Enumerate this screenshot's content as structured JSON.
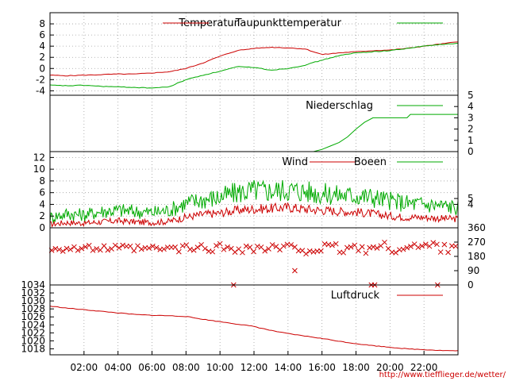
{
  "credit": "http://www.tiefflieger.de/wetter/",
  "x_axis": {
    "tick_labels": [
      "02:00",
      "04:00",
      "06:00",
      "08:00",
      "10:00",
      "12:00",
      "14:00",
      "16:00",
      "18:00",
      "20:00",
      "22:00"
    ],
    "tick_hours": [
      2,
      4,
      6,
      8,
      10,
      12,
      14,
      16,
      18,
      20,
      22
    ],
    "range_hours": [
      0,
      24
    ]
  },
  "colors": {
    "primary": "#cc0000",
    "secondary": "#00aa00",
    "grid": "#a0a0a0",
    "frame": "#000000"
  },
  "chart_data": [
    {
      "type": "line",
      "id": "temp",
      "ylim": [
        -4.8,
        10
      ],
      "left_ticks": [
        8,
        6,
        4,
        2,
        0,
        -2,
        -4
      ],
      "grid": true,
      "legend_placement": "top",
      "series": [
        {
          "name": "Temperatur",
          "color": "#cc0000",
          "points": [
            [
              0,
              -1.2
            ],
            [
              1,
              -1.3
            ],
            [
              2,
              -1.2
            ],
            [
              3,
              -1.1
            ],
            [
              4,
              -1.0
            ],
            [
              5,
              -1.0
            ],
            [
              6,
              -0.8
            ],
            [
              7,
              -0.6
            ],
            [
              8,
              0
            ],
            [
              9,
              1
            ],
            [
              10,
              2.2
            ],
            [
              11,
              3.2
            ],
            [
              12,
              3.6
            ],
            [
              13,
              3.8
            ],
            [
              14,
              3.7
            ],
            [
              15,
              3.5
            ],
            [
              16,
              2.5
            ],
            [
              17,
              2.8
            ],
            [
              18,
              3.0
            ],
            [
              19,
              3.2
            ],
            [
              20,
              3.3
            ],
            [
              21,
              3.6
            ],
            [
              22,
              4.0
            ],
            [
              23,
              4.4
            ],
            [
              24,
              4.8
            ]
          ]
        },
        {
          "name": "Taupunkttemperatur",
          "color": "#00aa00",
          "points": [
            [
              0,
              -3.0
            ],
            [
              1,
              -3.1
            ],
            [
              2,
              -3.0
            ],
            [
              3,
              -3.2
            ],
            [
              4,
              -3.3
            ],
            [
              5,
              -3.4
            ],
            [
              6,
              -3.5
            ],
            [
              7,
              -3.3
            ],
            [
              8,
              -2.0
            ],
            [
              9,
              -1.2
            ],
            [
              10,
              -0.5
            ],
            [
              11,
              0.3
            ],
            [
              12,
              0.2
            ],
            [
              13,
              -0.3
            ],
            [
              14,
              0
            ],
            [
              15,
              0.6
            ],
            [
              16,
              1.5
            ],
            [
              17,
              2.3
            ],
            [
              18,
              2.8
            ],
            [
              19,
              3.0
            ],
            [
              20,
              3.2
            ],
            [
              21,
              3.6
            ],
            [
              22,
              4.0
            ],
            [
              23,
              4.3
            ],
            [
              24,
              4.5
            ]
          ]
        }
      ]
    },
    {
      "type": "line",
      "id": "rain",
      "ylim": [
        0,
        5
      ],
      "right_ticks": [
        5,
        4,
        3,
        2,
        1,
        0
      ],
      "grid": false,
      "legend_placement": "top",
      "series": [
        {
          "name": "Niederschlag",
          "color": "#00aa00",
          "points": [
            [
              0,
              0
            ],
            [
              15.5,
              0
            ],
            [
              16,
              0.2
            ],
            [
              16.5,
              0.5
            ],
            [
              17,
              0.8
            ],
            [
              17.5,
              1.3
            ],
            [
              18,
              2.0
            ],
            [
              18.5,
              2.6
            ],
            [
              19,
              3.0
            ],
            [
              21,
              3.0
            ],
            [
              21.2,
              3.3
            ],
            [
              24,
              3.3
            ]
          ]
        }
      ]
    },
    {
      "type": "line",
      "id": "wind",
      "ylim": [
        0,
        13
      ],
      "left_ticks": [
        12,
        10,
        8,
        6,
        4,
        2,
        0
      ],
      "right_ticks": [
        5,
        4
      ],
      "grid": true,
      "legend_placement": "top",
      "series": [
        {
          "name": "Wind",
          "color": "#cc0000",
          "points": [
            [
              0,
              0.6
            ],
            [
              1,
              0.9
            ],
            [
              2,
              0.8
            ],
            [
              3,
              1.0
            ],
            [
              4,
              1.2
            ],
            [
              5,
              1.0
            ],
            [
              6,
              0.9
            ],
            [
              7,
              1.1
            ],
            [
              8,
              1.8
            ],
            [
              9,
              2.3
            ],
            [
              10,
              2.5
            ],
            [
              11,
              3.0
            ],
            [
              12,
              3.2
            ],
            [
              13,
              3.3
            ],
            [
              14,
              3.5
            ],
            [
              15,
              3.2
            ],
            [
              16,
              3.0
            ],
            [
              17,
              2.8
            ],
            [
              18,
              2.7
            ],
            [
              19,
              2.4
            ],
            [
              20,
              2.0
            ],
            [
              21,
              1.8
            ],
            [
              22,
              1.8
            ],
            [
              23,
              1.6
            ],
            [
              24,
              1.5
            ]
          ]
        },
        {
          "name": "Boeen",
          "color": "#00aa00",
          "points": [
            [
              0,
              1.8
            ],
            [
              1,
              2.4
            ],
            [
              2,
              2.2
            ],
            [
              3,
              2.8
            ],
            [
              4,
              3.0
            ],
            [
              5,
              2.8
            ],
            [
              6,
              2.6
            ],
            [
              7,
              3.0
            ],
            [
              8,
              4.2
            ],
            [
              9,
              4.8
            ],
            [
              10,
              5.2
            ],
            [
              11,
              6.0
            ],
            [
              12,
              6.4
            ],
            [
              13,
              6.3
            ],
            [
              14,
              6.5
            ],
            [
              15,
              6.2
            ],
            [
              16,
              5.8
            ],
            [
              17,
              5.6
            ],
            [
              18,
              5.5
            ],
            [
              19,
              5.2
            ],
            [
              20,
              4.6
            ],
            [
              21,
              4.2
            ],
            [
              22,
              4.0
            ],
            [
              23,
              3.8
            ],
            [
              24,
              3.5
            ]
          ]
        }
      ]
    },
    {
      "type": "scatter",
      "id": "direction",
      "ylim": [
        0,
        360
      ],
      "right_ticks": [
        360,
        270,
        180,
        90,
        0
      ],
      "grid": false,
      "series": [
        {
          "name": "",
          "color": "#cc0000",
          "points": [
            [
              0,
              230
            ],
            [
              2,
              230
            ],
            [
              4,
              230
            ],
            [
              6,
              225
            ],
            [
              8,
              230
            ],
            [
              10,
              235
            ],
            [
              12,
              230
            ],
            [
              14,
              230
            ],
            [
              16,
              225
            ],
            [
              18,
              230
            ],
            [
              20,
              235
            ],
            [
              22,
              240
            ],
            [
              24,
              250
            ]
          ]
        }
      ],
      "outliers": [
        [
          10.8,
          0
        ],
        [
          14.4,
          90
        ],
        [
          18.9,
          0
        ],
        [
          19.1,
          0
        ],
        [
          22.8,
          0
        ]
      ]
    },
    {
      "type": "line",
      "id": "pressure",
      "ylim": [
        1016.5,
        1034
      ],
      "left_ticks": [
        1034,
        1032,
        1030,
        1028,
        1026,
        1024,
        1022,
        1020,
        1018
      ],
      "grid": false,
      "legend_placement": "top-right",
      "series": [
        {
          "name": "Luftdruck",
          "color": "#cc0000",
          "points": [
            [
              0,
              1028.7
            ],
            [
              1,
              1028.2
            ],
            [
              2,
              1027.8
            ],
            [
              3,
              1027.4
            ],
            [
              4,
              1027.0
            ],
            [
              5,
              1026.6
            ],
            [
              6,
              1026.4
            ],
            [
              7,
              1026.3
            ],
            [
              8,
              1026.1
            ],
            [
              9,
              1025.4
            ],
            [
              10,
              1024.8
            ],
            [
              11,
              1024.2
            ],
            [
              12,
              1023.6
            ],
            [
              13,
              1022.6
            ],
            [
              14,
              1021.8
            ],
            [
              15,
              1021.2
            ],
            [
              16,
              1020.6
            ],
            [
              17,
              1019.9
            ],
            [
              18,
              1019.3
            ],
            [
              19,
              1018.8
            ],
            [
              20,
              1018.4
            ],
            [
              21,
              1018.0
            ],
            [
              22,
              1017.8
            ],
            [
              23,
              1017.6
            ],
            [
              24,
              1017.5
            ]
          ]
        }
      ]
    }
  ]
}
